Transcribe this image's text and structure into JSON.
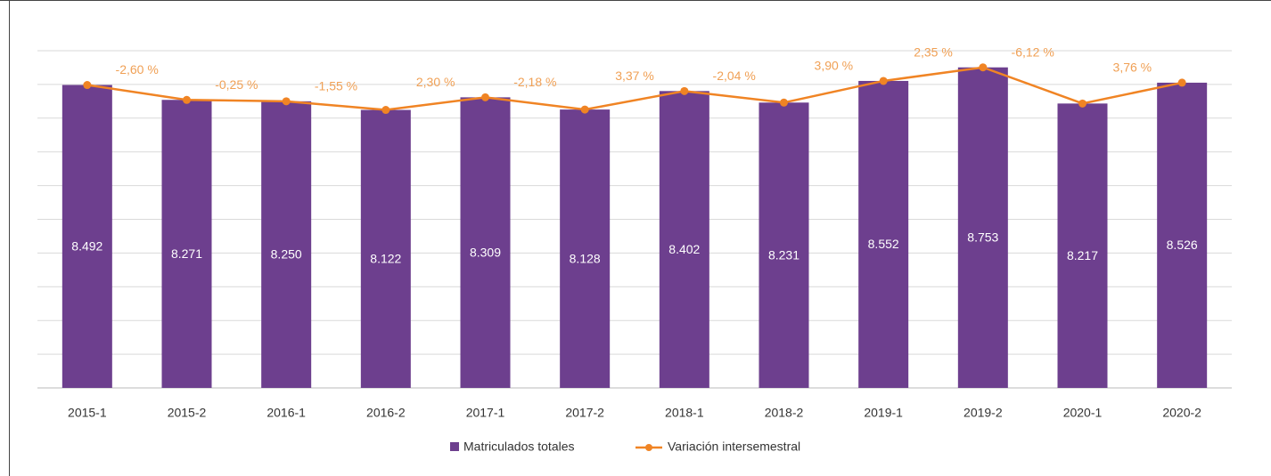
{
  "chart_data": {
    "type": "bar_line",
    "categories": [
      "2015-1",
      "2015-2",
      "2016-1",
      "2016-2",
      "2017-1",
      "2017-2",
      "2018-1",
      "2018-2",
      "2019-1",
      "2019-2",
      "2020-1",
      "2020-2"
    ],
    "series": [
      {
        "name": "Matriculados totales",
        "type": "bar",
        "color": "#6d3f8e",
        "values": [
          8492,
          8271,
          8250,
          8122,
          8309,
          8128,
          8402,
          8231,
          8552,
          8753,
          8217,
          8526
        ],
        "value_labels": [
          "8.492",
          "8.271",
          "8.250",
          "8.122",
          "8.309",
          "8.128",
          "8.402",
          "8.231",
          "8.552",
          "8.753",
          "8.217",
          "8.526"
        ]
      },
      {
        "name": "Variación intersemestral",
        "type": "line",
        "color": "#f08424",
        "values": [
          null,
          -2.6,
          -0.25,
          -1.55,
          2.3,
          -2.18,
          3.37,
          -2.04,
          3.9,
          2.35,
          -6.12,
          3.76
        ],
        "value_labels": [
          null,
          "-2,60 %",
          "-0,25 %",
          "-1,55 %",
          "2,30 %",
          "-2,18 %",
          "3,37 %",
          "-2,04 %",
          "3,90 %",
          "2,35 %",
          "-6,12 %",
          "3,76 %"
        ]
      }
    ],
    "ylim": [
      4000,
      9000
    ],
    "yticks": [
      4000,
      4500,
      5000,
      5500,
      6000,
      6500,
      7000,
      7500,
      8000,
      8500,
      9000
    ],
    "grid": true,
    "legend": "bottom"
  }
}
